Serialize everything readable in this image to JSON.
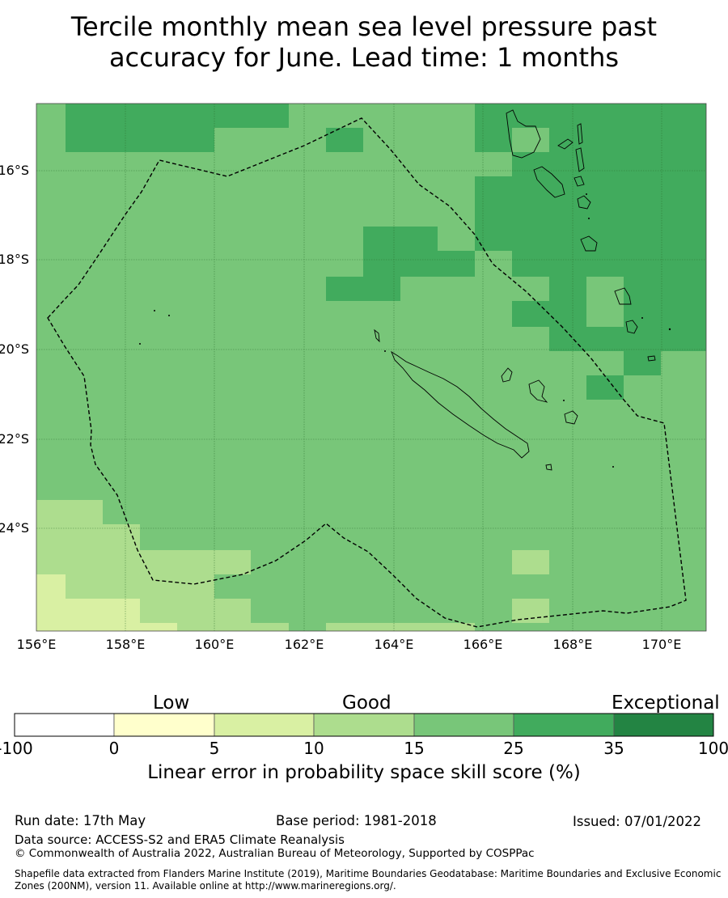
{
  "title": {
    "line1": "Tercile monthly mean sea level pressure past",
    "line2": "accuracy for June. Lead time: 1 months"
  },
  "map": {
    "lat_labels": [
      "16°S",
      "18°S",
      "20°S",
      "22°S",
      "24°S"
    ],
    "lon_labels": [
      "156°E",
      "158°E",
      "160°E",
      "162°E",
      "164°E",
      "166°E",
      "168°E",
      "170°E"
    ],
    "extent": {
      "lon_min": 156,
      "lon_max": 171,
      "lat_min": -26.3,
      "lat_max": -14.5
    },
    "boundary_style": "dashed",
    "gridlines": true
  },
  "colorbar": {
    "categories": [
      "Low",
      "Good",
      "Exceptional"
    ],
    "ticks": [
      "-100",
      "0",
      "5",
      "10",
      "15",
      "25",
      "35",
      "100"
    ],
    "colors": [
      "#ffffff",
      "#ffffcc",
      "#d9f0a3",
      "#addd8e",
      "#78c679",
      "#41ab5d",
      "#238443"
    ],
    "label": "Linear error in probability space skill score (%)"
  },
  "footer": {
    "run_date": "Run date: 17th May",
    "base_period": "Base period: 1981-2018",
    "issued": "Issued: 07/01/2022",
    "data_source": "Data source: ACCESS-S2 and ERA5 Climate Reanalysis",
    "copyright": "© Commonwealth of Australia 2022, Australian Bureau of Meteorology, Supported by COSPPac",
    "shapefile": "Shapefile data extracted from Flanders Marine Institute (2019), Maritime Boundaries Geodatabase: Maritime Boundaries and Exclusive Economic Zones (200NM), version 11. Available online at http://www.marineregions.org/."
  }
}
